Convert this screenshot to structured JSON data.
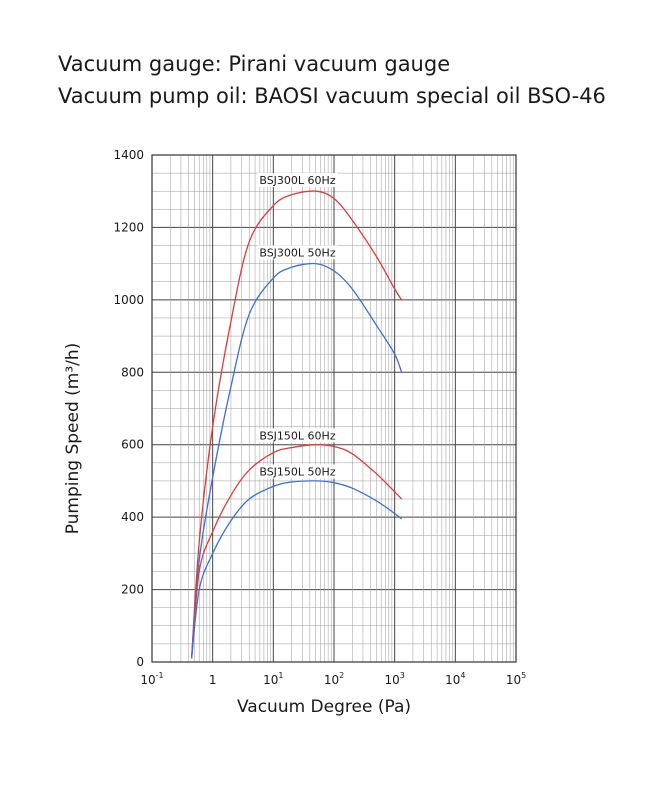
{
  "header": {
    "line1": "Vacuum gauge: Pirani vacuum gauge",
    "line2": "Vacuum pump oil: BAOSI  vacuum special oil BSO-46"
  },
  "chart_data": {
    "type": "line",
    "title": "",
    "xlabel": "Vacuum Degree (Pa)",
    "ylabel": "Pumping Speed (m³/h)",
    "x_scale": "log",
    "xlim": [
      0.1,
      100000
    ],
    "ylim": [
      0,
      1400
    ],
    "x_ticks": [
      {
        "base": "10",
        "exp": "-1"
      },
      {
        "base": "1",
        "exp": ""
      },
      {
        "base": "10",
        "exp": "1"
      },
      {
        "base": "10",
        "exp": "2"
      },
      {
        "base": "10",
        "exp": "3"
      },
      {
        "base": "10",
        "exp": "4"
      },
      {
        "base": "10",
        "exp": "5"
      }
    ],
    "y_ticks": [
      "0",
      "200",
      "400",
      "600",
      "800",
      "1000",
      "1200",
      "1400"
    ],
    "grid": true,
    "series": [
      {
        "name": "BSJ300L  60Hz",
        "color": "#e03a3a",
        "x": [
          0.45,
          0.6,
          1,
          2,
          4,
          10,
          20,
          50,
          100,
          200,
          500,
          1000,
          1300
        ],
        "y": [
          10,
          330,
          650,
          940,
          1160,
          1260,
          1290,
          1300,
          1280,
          1220,
          1120,
          1030,
          1000
        ]
      },
      {
        "name": "BSJ300L  50Hz",
        "color": "#3a6fd8",
        "x": [
          0.45,
          0.6,
          1,
          2,
          4,
          10,
          20,
          50,
          100,
          200,
          500,
          1000,
          1300
        ],
        "y": [
          10,
          280,
          510,
          760,
          960,
          1060,
          1090,
          1100,
          1080,
          1030,
          930,
          850,
          800
        ]
      },
      {
        "name": "BSJ150L  60Hz",
        "color": "#e03a3a",
        "x": [
          0.45,
          0.6,
          1,
          2,
          4,
          10,
          20,
          50,
          100,
          200,
          500,
          1000,
          1300
        ],
        "y": [
          10,
          250,
          360,
          460,
          530,
          578,
          592,
          600,
          595,
          575,
          520,
          470,
          450
        ]
      },
      {
        "name": "BSJ150L  50Hz",
        "color": "#3a6fd8",
        "x": [
          0.45,
          0.6,
          1,
          2,
          4,
          10,
          20,
          50,
          100,
          200,
          500,
          1000,
          1300
        ],
        "y": [
          10,
          200,
          300,
          390,
          450,
          485,
          497,
          500,
          495,
          480,
          445,
          410,
          395
        ]
      }
    ]
  }
}
